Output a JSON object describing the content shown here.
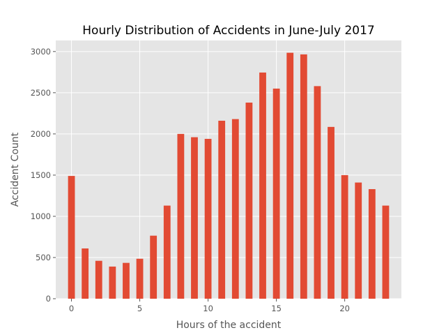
{
  "chart_data": {
    "type": "bar",
    "title": "Hourly Distribution of Accidents in June-July 2017",
    "xlabel": "Hours of the accident",
    "ylabel": "Accident Count",
    "x": [
      0,
      1,
      2,
      3,
      4,
      5,
      6,
      7,
      8,
      9,
      10,
      11,
      12,
      13,
      14,
      15,
      16,
      17,
      18,
      19,
      20,
      21,
      22,
      23
    ],
    "values": [
      1490,
      610,
      460,
      390,
      435,
      485,
      765,
      1130,
      2000,
      1960,
      1940,
      2160,
      2180,
      2380,
      2745,
      2550,
      2985,
      2965,
      2580,
      2085,
      1500,
      1410,
      1330,
      1130
    ],
    "xlim": [
      -1.15,
      24.15
    ],
    "ylim": [
      0,
      3134
    ],
    "xticks": [
      0,
      5,
      10,
      15,
      20
    ],
    "yticks": [
      0,
      500,
      1000,
      1500,
      2000,
      2500,
      3000
    ],
    "bar_width_units": 0.5,
    "grid": true,
    "style": "ggplot",
    "colors": {
      "bar": "#E24A33",
      "panel": "#E5E5E5",
      "grid": "#FFFFFF",
      "text": "#555555",
      "title": "#000000"
    }
  }
}
